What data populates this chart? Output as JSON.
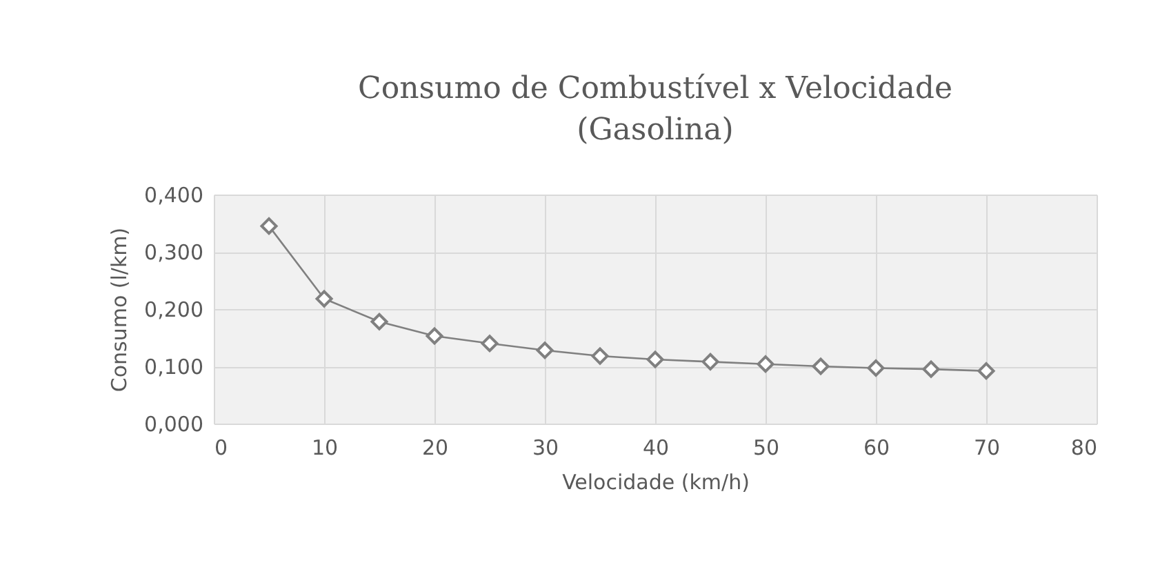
{
  "chart_data": {
    "type": "line",
    "title": "Consumo de Combustível x Velocidade (Gasolina)",
    "xlabel": "Velocidade (km/h)",
    "ylabel": "Consumo (l/km)",
    "x": [
      5,
      10,
      15,
      20,
      25,
      30,
      35,
      40,
      45,
      50,
      55,
      60,
      65,
      70
    ],
    "series": [
      {
        "color": "#808080",
        "values": [
          0.345,
          0.218,
          0.178,
          0.153,
          0.14,
          0.128,
          0.118,
          0.112,
          0.108,
          0.104,
          0.1,
          0.097,
          0.095,
          0.092
        ]
      }
    ],
    "xlim": [
      0,
      80
    ],
    "xticks": [
      0,
      10,
      20,
      30,
      40,
      50,
      60,
      70,
      80
    ],
    "ylim": [
      0,
      0.4
    ],
    "yticks": [
      {
        "value": 0,
        "label": "0,000"
      },
      {
        "value": 0.1,
        "label": "0,100"
      },
      {
        "value": 0.2,
        "label": "0,200"
      },
      {
        "value": 0.3,
        "label": "0,300"
      },
      {
        "value": 0.4,
        "label": "0,400"
      }
    ],
    "grid": true,
    "marker": "diamond",
    "line_style": "solid"
  }
}
